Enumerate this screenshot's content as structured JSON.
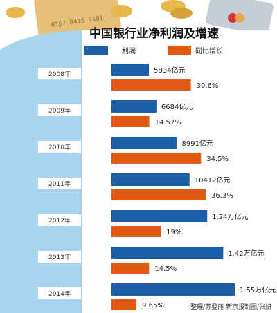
{
  "chart_data": {
    "type": "bar",
    "title": "中国银行业净利润及增速",
    "categories": [
      "2008年",
      "2009年",
      "2010年",
      "2011年",
      "2012年",
      "2013年",
      "2014年"
    ],
    "series": [
      {
        "name": "利润",
        "values": [
          5834,
          6684,
          8991,
          10412,
          12400,
          14200,
          15500
        ],
        "labels": [
          "5834亿元",
          "6684亿元",
          "8991亿元",
          "10412亿元",
          "1.24万亿元",
          "1.42万亿元",
          "1.55万亿元"
        ]
      },
      {
        "name": "同比增长",
        "values": [
          30.6,
          14.57,
          34.5,
          36.3,
          19,
          14.5,
          9.65
        ],
        "labels": [
          "30.6%",
          "14.57%",
          "34.5%",
          "36.3%",
          "19%",
          "14.5%",
          "9.65%"
        ]
      }
    ],
    "xlabel": "",
    "ylabel": ""
  },
  "credit": "整理/苏曼丽   新京报制图/张妍",
  "colors": {
    "profit": "#1a5fa8",
    "growth": "#e05a14",
    "sidebar": "#a8d4ee",
    "year_box": "#ffffff",
    "coin": "#e8b84a",
    "card": "#e6c07a"
  }
}
